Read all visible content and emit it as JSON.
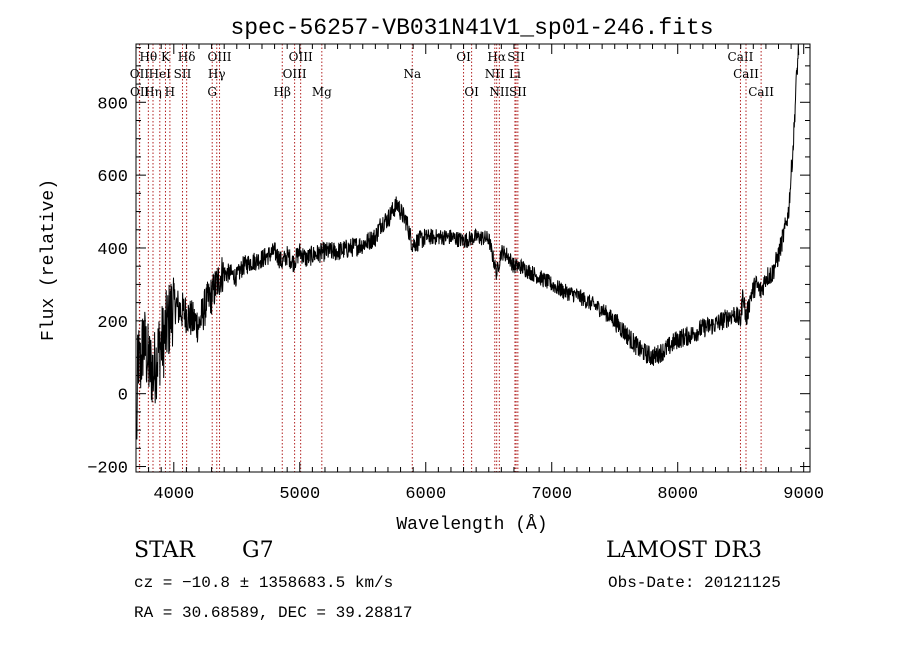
{
  "chart_data": {
    "type": "line",
    "title": "spec-56257-VB031N41V1_sp01-246.fits",
    "xlabel": "Wavelength (Å)",
    "ylabel": "Flux (relative)",
    "xlim": [
      3700,
      9050
    ],
    "ylim": [
      -215,
      960
    ],
    "xticks": [
      4000,
      5000,
      6000,
      7000,
      8000,
      9000
    ],
    "xtick_labels": [
      "4000",
      "5000",
      "6000",
      "7000",
      "8000",
      "9000"
    ],
    "yticks": [
      -200,
      0,
      200,
      400,
      600,
      800
    ],
    "ytick_labels": [
      "−200",
      "0",
      "200",
      "400",
      "600",
      "800"
    ],
    "line_color": "#000000",
    "marker_color": "#b22222",
    "spectrum_anchors": {
      "x": [
        3705,
        3715,
        3730,
        3760,
        3800,
        3840,
        3880,
        3920,
        3960,
        4000,
        4050,
        4100,
        4150,
        4200,
        4260,
        4300,
        4340,
        4380,
        4450,
        4500,
        4550,
        4600,
        4650,
        4700,
        4750,
        4800,
        4860,
        4900,
        4950,
        5000,
        5050,
        5100,
        5200,
        5300,
        5400,
        5500,
        5600,
        5650,
        5700,
        5750,
        5780,
        5800,
        5850,
        5893,
        5950,
        6000,
        6100,
        6200,
        6300,
        6400,
        6500,
        6563,
        6600,
        6650,
        6700,
        6750,
        6800,
        6900,
        7000,
        7100,
        7200,
        7300,
        7400,
        7500,
        7600,
        7700,
        7800,
        7900,
        8000,
        8100,
        8200,
        8300,
        8400,
        8450,
        8498,
        8520,
        8542,
        8580,
        8620,
        8662,
        8700,
        8750,
        8800,
        8850,
        8880,
        8900,
        8920,
        8940,
        8960
      ],
      "y": [
        -150,
        120,
        60,
        150,
        80,
        60,
        120,
        150,
        200,
        250,
        230,
        220,
        200,
        190,
        250,
        270,
        300,
        330,
        330,
        320,
        350,
        360,
        365,
        370,
        380,
        390,
        360,
        380,
        360,
        390,
        370,
        380,
        390,
        390,
        400,
        410,
        430,
        470,
        480,
        510,
        520,
        500,
        470,
        410,
        420,
        430,
        430,
        430,
        420,
        430,
        425,
        330,
        390,
        380,
        350,
        350,
        340,
        320,
        300,
        280,
        270,
        250,
        230,
        200,
        160,
        120,
        100,
        120,
        150,
        160,
        180,
        190,
        210,
        220,
        200,
        280,
        200,
        270,
        300,
        280,
        320,
        330,
        380,
        450,
        500,
        600,
        700,
        850,
        950
      ]
    },
    "line_markers": [
      {
        "label": "Hθ",
        "x": 3798,
        "row": 1
      },
      {
        "label": "OII",
        "x": 3727,
        "row": 2
      },
      {
        "label": "OII",
        "x": 3729,
        "row": 3
      },
      {
        "label": "Hη",
        "x": 3835,
        "row": 3
      },
      {
        "label": "HeI",
        "x": 3889,
        "row": 2
      },
      {
        "label": "K",
        "x": 3934,
        "row": 1
      },
      {
        "label": "SII",
        "x": 4069,
        "row": 2
      },
      {
        "label": "H",
        "x": 3969,
        "row": 3
      },
      {
        "label": "Hδ",
        "x": 4102,
        "row": 1
      },
      {
        "label": "OIII",
        "x": 4363,
        "row": 1
      },
      {
        "label": "Hγ",
        "x": 4341,
        "row": 2
      },
      {
        "label": "G",
        "x": 4305,
        "row": 3
      },
      {
        "label": "Hβ",
        "x": 4861,
        "row": 3
      },
      {
        "label": "OIII",
        "x": 5007,
        "row": 1
      },
      {
        "label": "OIII",
        "x": 4959,
        "row": 2
      },
      {
        "label": "Mg",
        "x": 5175,
        "row": 3
      },
      {
        "label": "Na",
        "x": 5893,
        "row": 2
      },
      {
        "label": "OI",
        "x": 6300,
        "row": 1
      },
      {
        "label": "OI",
        "x": 6364,
        "row": 3
      },
      {
        "label": "Hα",
        "x": 6563,
        "row": 1
      },
      {
        "label": "NII",
        "x": 6548,
        "row": 2
      },
      {
        "label": "NII",
        "x": 6584,
        "row": 3
      },
      {
        "label": "SII",
        "x": 6717,
        "row": 1
      },
      {
        "label": "Li",
        "x": 6708,
        "row": 2
      },
      {
        "label": "SII",
        "x": 6731,
        "row": 3
      },
      {
        "label": "CaII",
        "x": 8498,
        "row": 1
      },
      {
        "label": "CaII",
        "x": 8542,
        "row": 2
      },
      {
        "label": "CaII",
        "x": 8662,
        "row": 3
      }
    ]
  },
  "info": {
    "object_type": "STAR",
    "subclass": "G7",
    "survey": "LAMOST DR3",
    "cz": "cz = −10.8 ± 1358683.5 km/s",
    "obs_date": "Obs-Date: 20121125",
    "coords": "RA =  30.68589, DEC =  39.28817"
  }
}
